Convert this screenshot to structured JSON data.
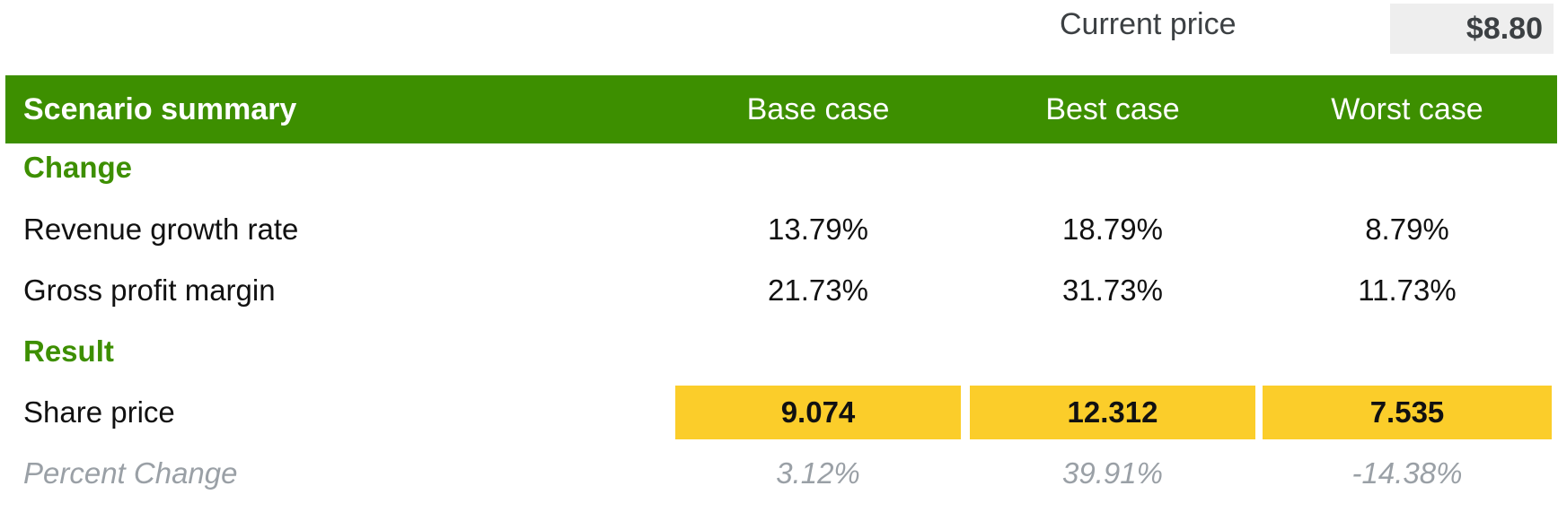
{
  "current_price": {
    "label": "Current price",
    "value": "$8.80"
  },
  "table": {
    "header": {
      "title": "Scenario summary",
      "columns": [
        "Base case",
        "Best case",
        "Worst case"
      ]
    },
    "sections": {
      "change": "Change",
      "result": "Result"
    },
    "rows": {
      "revenue_growth": {
        "label": "Revenue growth rate",
        "values": [
          "13.79%",
          "18.79%",
          "8.79%"
        ]
      },
      "gross_margin": {
        "label": "Gross profit margin",
        "values": [
          "21.73%",
          "31.73%",
          "11.73%"
        ]
      },
      "share_price": {
        "label": "Share price",
        "values": [
          "9.074",
          "12.312",
          "7.535"
        ]
      },
      "percent_change": {
        "label": "Percent Change",
        "values": [
          "3.12%",
          "39.91%",
          "-14.38%"
        ]
      }
    }
  },
  "colors": {
    "header_green": "#3d8f00",
    "section_green": "#3d8f00",
    "highlight_yellow": "#fbcd2a",
    "muted_gray": "#9aa0a6",
    "price_box_bg": "#eeeeee"
  }
}
